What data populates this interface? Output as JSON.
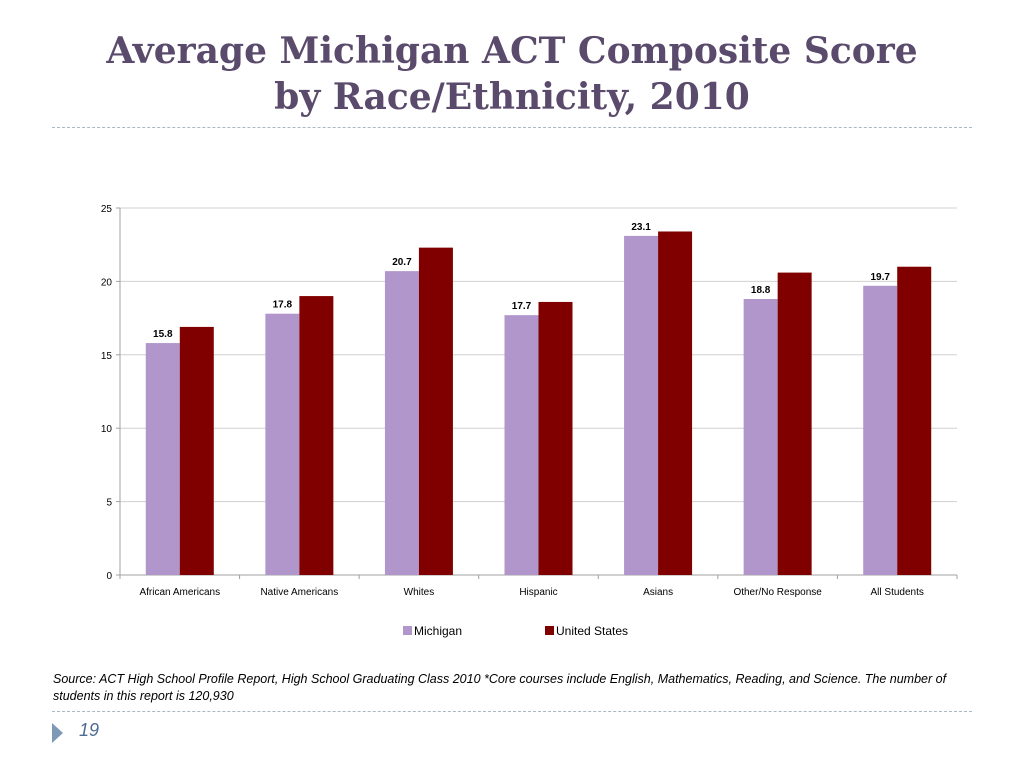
{
  "slide": {
    "title_line1": "Average Michigan ACT Composite Score",
    "title_line2": "by Race/Ethnicity, 2010",
    "source": "Source: ACT High School Profile Report, High School Graduating Class 2010 *Core courses include English, Mathematics, Reading, and Science. The number of students in this report is 120,930",
    "page_number": "19"
  },
  "colors": {
    "title": "#5a4a6b",
    "michigan": "#b196cb",
    "united_states": "#800000",
    "divider": "#a9b7c6",
    "page_marker": "#7e99b8"
  },
  "chart_data": {
    "type": "bar",
    "categories": [
      "African Americans",
      "Native Americans",
      "Whites",
      "Hispanic",
      "Asians",
      "Other/No Response",
      "All Students"
    ],
    "series": [
      {
        "name": "Michigan",
        "values": [
          15.8,
          17.8,
          20.7,
          17.7,
          23.1,
          18.8,
          19.7
        ],
        "labels": [
          "15.8",
          "17.8",
          "20.7",
          "17.7",
          "23.1",
          "18.8",
          "19.7"
        ]
      },
      {
        "name": "United States",
        "values": [
          16.9,
          19.0,
          22.3,
          18.6,
          23.4,
          20.6,
          21.0
        ]
      }
    ],
    "ylim": [
      0,
      25
    ],
    "yticks": [
      0,
      5,
      10,
      15,
      20,
      25
    ],
    "grid": true,
    "legend": "bottom-center",
    "title": "",
    "xlabel": "",
    "ylabel": ""
  }
}
